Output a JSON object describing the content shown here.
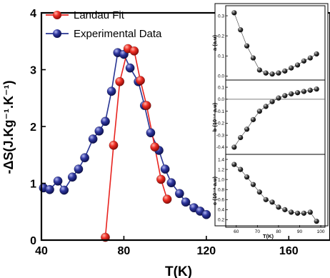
{
  "chart_data": [
    {
      "type": "line",
      "title": "",
      "xlabel": "T(K)",
      "ylabel": "-ΔS(J.Kg⁻¹.K⁻¹)",
      "xlim": [
        40,
        180
      ],
      "ylim": [
        0,
        4
      ],
      "xticks": [
        "40",
        "80",
        "120",
        "160"
      ],
      "yticks": [
        "0",
        "1",
        "2",
        "3",
        "4"
      ],
      "legend": "top-left",
      "series": [
        {
          "name": "Landau Fit",
          "color": "#e8231f",
          "x": [
            71,
            75,
            78,
            82,
            85,
            88,
            91,
            95,
            98,
            101
          ],
          "y": [
            0.05,
            1.67,
            2.79,
            3.37,
            3.33,
            2.81,
            2.37,
            1.64,
            1.07,
            0.72
          ]
        },
        {
          "name": "Experimental Data",
          "color": "#283593",
          "x": [
            41,
            44,
            48,
            51,
            55,
            58,
            61,
            65,
            68,
            71,
            74,
            77,
            80,
            83,
            87,
            90,
            93,
            97,
            100,
            103,
            107,
            110,
            114,
            117,
            120
          ],
          "y": [
            0.92,
            0.89,
            1.04,
            0.88,
            1.11,
            1.25,
            1.45,
            1.78,
            1.92,
            2.09,
            2.62,
            3.3,
            3.27,
            3.03,
            2.79,
            2.37,
            1.89,
            1.58,
            1.25,
            1.01,
            0.82,
            0.67,
            0.57,
            0.51,
            0.45
          ]
        }
      ]
    },
    {
      "type": "scatter",
      "ylabel": "a (a.u)",
      "xlim": [
        55,
        102
      ],
      "ylim": [
        -0.02,
        0.35
      ],
      "yticks": [
        "0.0",
        "0.1",
        "0.2",
        "0.3"
      ],
      "x": [
        59,
        62,
        65,
        68,
        71,
        74,
        77,
        80,
        83,
        86,
        89,
        92,
        95,
        98
      ],
      "y": [
        0.315,
        0.23,
        0.15,
        0.09,
        0.03,
        0.015,
        0.01,
        0.015,
        0.025,
        0.04,
        0.055,
        0.075,
        0.09,
        0.11
      ]
    },
    {
      "type": "scatter",
      "ylabel": "b (10⁻⁴ a.u)",
      "xlim": [
        55,
        102
      ],
      "ylim": [
        -0.46,
        0.16
      ],
      "yticks": [
        "-0.4",
        "-0.3",
        "-0.2",
        "-0.1",
        "0.0",
        "0.1"
      ],
      "x": [
        59,
        62,
        65,
        68,
        71,
        74,
        77,
        80,
        83,
        86,
        89,
        92,
        95,
        98
      ],
      "y": [
        -0.4,
        -0.32,
        -0.25,
        -0.17,
        -0.1,
        -0.06,
        -0.02,
        0.01,
        0.03,
        0.045,
        0.055,
        0.065,
        0.075,
        0.085
      ]
    },
    {
      "type": "scatter",
      "ylabel": "c (10⁻⁸ a.u)",
      "xlabel": "T(K)",
      "xlim": [
        55,
        102
      ],
      "xticks": [
        "60",
        "70",
        "80",
        "90",
        "100"
      ],
      "ylim": [
        0.05,
        1.5
      ],
      "yticks": [
        "0.2",
        "0.4",
        "0.6",
        "0.8",
        "1.0",
        "1.2",
        "1.4"
      ],
      "x": [
        59,
        62,
        65,
        68,
        71,
        74,
        77,
        80,
        83,
        86,
        89,
        92,
        95,
        98
      ],
      "y": [
        1.3,
        1.2,
        1.05,
        0.9,
        0.75,
        0.6,
        0.55,
        0.45,
        0.4,
        0.35,
        0.33,
        0.33,
        0.35,
        0.17
      ]
    }
  ]
}
